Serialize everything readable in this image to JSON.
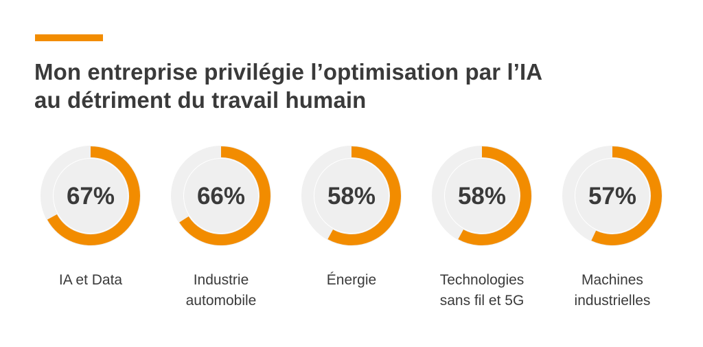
{
  "title": {
    "line1": "Mon entreprise privilégie l’optimisation par l’IA",
    "line2": "au détriment du travail humain"
  },
  "colors": {
    "accent": "#f28c00",
    "track": "#f0f0f0",
    "inner": "#efefef",
    "text": "#3a3a3a"
  },
  "chart_data": {
    "type": "donut",
    "title": "Mon entreprise privilégie l’optimisation par l’IA au détriment du travail humain",
    "unit": "%",
    "categories": [
      [
        "IA et Data"
      ],
      [
        "Industrie",
        "automobile"
      ],
      [
        "Énergie"
      ],
      [
        "Technologies",
        "sans fil et 5G"
      ],
      [
        "Machines",
        "industrielles"
      ]
    ],
    "values": [
      67,
      66,
      58,
      58,
      57
    ],
    "labels": [
      "67%",
      "66%",
      "58%",
      "58%",
      "57%"
    ],
    "max": 100
  }
}
